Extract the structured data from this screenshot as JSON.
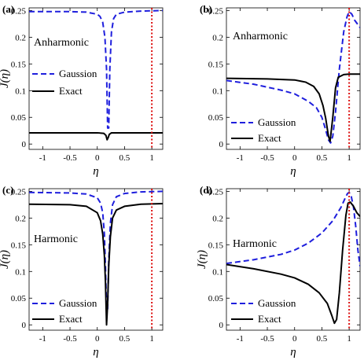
{
  "chart_data": [
    {
      "panel": "(a)",
      "type": "line",
      "annotation": "Anharmonic",
      "xlabel": "η",
      "ylabel": "J(η)",
      "xlim": [
        -1.25,
        1.2
      ],
      "ylim": [
        -0.01,
        0.255
      ],
      "xticks": [
        "-1",
        "-0.5",
        "0",
        "0.5",
        "1"
      ],
      "yticks": [
        "0",
        "0.05",
        "0.1",
        "0.15",
        "0.2",
        "0.25"
      ],
      "legend_position": "middle-left",
      "series": [
        {
          "name": "Gaussion",
          "style": "dashed",
          "color": "#1f1fdd",
          "x": [
            -1.25,
            -0.5,
            -0.2,
            0.0,
            0.05,
            0.1,
            0.14,
            0.17,
            0.19,
            0.21,
            0.23,
            0.26,
            0.3,
            0.35,
            0.5,
            0.8,
            1.2
          ],
          "y": [
            0.248,
            0.248,
            0.247,
            0.243,
            0.239,
            0.228,
            0.2,
            0.14,
            0.03,
            0.03,
            0.14,
            0.21,
            0.235,
            0.243,
            0.247,
            0.249,
            0.25
          ]
        },
        {
          "name": "Exact",
          "style": "solid",
          "color": "#000000",
          "x": [
            -1.25,
            0.0,
            0.12,
            0.16,
            0.18,
            0.2,
            0.22,
            0.26,
            0.4,
            1.2
          ],
          "y": [
            0.021,
            0.021,
            0.02,
            0.016,
            0.008,
            0.012,
            0.018,
            0.021,
            0.021,
            0.021
          ]
        }
      ],
      "vline": {
        "x": 1.0,
        "style": "dotted",
        "color": "#dd1111"
      }
    },
    {
      "panel": "(b)",
      "type": "line",
      "annotation": "Anharmonic",
      "xlabel": "η",
      "ylabel": "",
      "xlim": [
        -1.25,
        1.2
      ],
      "ylim": [
        -0.01,
        0.255
      ],
      "xticks": [
        "-1",
        "-0.5",
        "0",
        "0.5",
        "1"
      ],
      "yticks": [
        "0",
        "0.05",
        "0.1",
        "0.15",
        "0.2",
        "0.25"
      ],
      "legend_position": "bottom-left",
      "series": [
        {
          "name": "Gaussion",
          "style": "dashed",
          "color": "#1f1fdd",
          "x": [
            -1.25,
            -0.75,
            -0.25,
            0.0,
            0.25,
            0.4,
            0.5,
            0.56,
            0.62,
            0.66,
            0.7,
            0.75,
            0.82,
            0.9,
            0.96,
            1.0,
            1.05,
            1.1,
            1.15,
            1.2
          ],
          "y": [
            0.119,
            0.112,
            0.101,
            0.094,
            0.08,
            0.068,
            0.05,
            0.03,
            0.008,
            0.002,
            0.015,
            0.06,
            0.14,
            0.21,
            0.238,
            0.248,
            0.243,
            0.232,
            0.225,
            0.218
          ]
        },
        {
          "name": "Exact",
          "style": "solid",
          "color": "#000000",
          "x": [
            -1.25,
            -0.5,
            0.0,
            0.2,
            0.35,
            0.45,
            0.52,
            0.57,
            0.62,
            0.65,
            0.7,
            0.75,
            0.8,
            0.9,
            1.0,
            1.2
          ],
          "y": [
            0.123,
            0.122,
            0.12,
            0.116,
            0.108,
            0.094,
            0.072,
            0.048,
            0.015,
            0.005,
            0.05,
            0.105,
            0.125,
            0.13,
            0.131,
            0.131
          ]
        }
      ],
      "vline": {
        "x": 1.0,
        "style": "dotted",
        "color": "#dd1111"
      }
    },
    {
      "panel": "(c)",
      "type": "line",
      "annotation": "Harmonic",
      "xlabel": "η",
      "ylabel": "J(η)",
      "xlim": [
        -1.25,
        1.2
      ],
      "ylim": [
        -0.01,
        0.255
      ],
      "xticks": [
        "-1",
        "-0.5",
        "0",
        "0.5",
        "1"
      ],
      "yticks": [
        "0",
        "0.05",
        "0.1",
        "0.15",
        "0.2",
        "0.25"
      ],
      "legend_position": "bottom-left",
      "series": [
        {
          "name": "Gaussion",
          "style": "dashed",
          "color": "#1f1fdd",
          "x": [
            -1.25,
            -0.5,
            -0.2,
            0.0,
            0.06,
            0.1,
            0.13,
            0.15,
            0.17,
            0.19,
            0.21,
            0.24,
            0.28,
            0.35,
            0.5,
            0.8,
            1.2
          ],
          "y": [
            0.248,
            0.247,
            0.245,
            0.238,
            0.228,
            0.21,
            0.17,
            0.11,
            0.03,
            0.03,
            0.12,
            0.19,
            0.225,
            0.24,
            0.246,
            0.249,
            0.25
          ]
        },
        {
          "name": "Exact",
          "style": "solid",
          "color": "#000000",
          "x": [
            -1.25,
            -0.5,
            -0.2,
            0.0,
            0.06,
            0.1,
            0.13,
            0.15,
            0.17,
            0.19,
            0.21,
            0.24,
            0.28,
            0.35,
            0.5,
            0.8,
            1.2
          ],
          "y": [
            0.226,
            0.225,
            0.222,
            0.21,
            0.195,
            0.17,
            0.13,
            0.08,
            0.0,
            0.04,
            0.11,
            0.165,
            0.2,
            0.215,
            0.222,
            0.226,
            0.227
          ]
        }
      ],
      "vline": {
        "x": 1.0,
        "style": "dotted",
        "color": "#dd1111"
      }
    },
    {
      "panel": "(d)",
      "type": "line",
      "annotation": "Harmonic",
      "xlabel": "η",
      "ylabel": "J(η)",
      "xlim": [
        -1.25,
        1.2
      ],
      "ylim": [
        -0.01,
        0.255
      ],
      "xticks": [
        "-1",
        "-0.5",
        "0",
        "0.5",
        "1"
      ],
      "yticks": [
        "0",
        "0.05",
        "0.1",
        "0.15",
        "0.2",
        "0.25"
      ],
      "legend_position": "bottom-left",
      "series": [
        {
          "name": "Gaussion",
          "style": "dashed",
          "color": "#1f1fdd",
          "x": [
            -1.25,
            -0.75,
            -0.25,
            0.0,
            0.25,
            0.5,
            0.7,
            0.85,
            0.93,
            0.97,
            1.0,
            1.04,
            1.08,
            1.12,
            1.16,
            1.2
          ],
          "y": [
            0.115,
            0.122,
            0.132,
            0.14,
            0.153,
            0.172,
            0.195,
            0.22,
            0.238,
            0.246,
            0.248,
            0.24,
            0.22,
            0.185,
            0.14,
            0.11
          ]
        },
        {
          "name": "Exact",
          "style": "solid",
          "color": "#000000",
          "x": [
            -1.25,
            -0.75,
            -0.25,
            0.0,
            0.25,
            0.45,
            0.6,
            0.68,
            0.73,
            0.77,
            0.82,
            0.88,
            0.94,
            0.98,
            1.02,
            1.08,
            1.14,
            1.2
          ],
          "y": [
            0.113,
            0.105,
            0.095,
            0.088,
            0.076,
            0.06,
            0.04,
            0.018,
            0.003,
            0.01,
            0.06,
            0.14,
            0.205,
            0.228,
            0.23,
            0.222,
            0.21,
            0.203
          ]
        }
      ],
      "vline": {
        "x": 1.0,
        "style": "dotted",
        "color": "#dd1111"
      }
    }
  ]
}
